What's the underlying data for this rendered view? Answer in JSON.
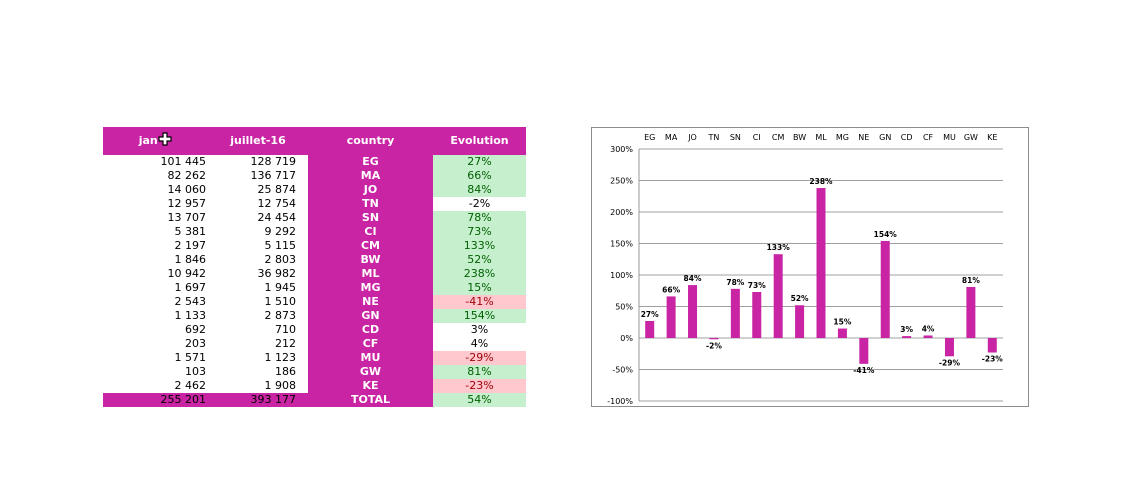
{
  "table": {
    "headers": [
      "jan-",
      "juillet-16",
      "country",
      "Evolution"
    ],
    "rows": [
      {
        "jan": "101 445",
        "jul": "128 719",
        "country": "EG",
        "evo": "27%",
        "kind": "pos"
      },
      {
        "jan": "82 262",
        "jul": "136 717",
        "country": "MA",
        "evo": "66%",
        "kind": "pos"
      },
      {
        "jan": "14 060",
        "jul": "25 874",
        "country": "JO",
        "evo": "84%",
        "kind": "pos"
      },
      {
        "jan": "12 957",
        "jul": "12 754",
        "country": "TN",
        "evo": "-2%",
        "kind": "neu"
      },
      {
        "jan": "13 707",
        "jul": "24 454",
        "country": "SN",
        "evo": "78%",
        "kind": "pos"
      },
      {
        "jan": "5 381",
        "jul": "9 292",
        "country": "CI",
        "evo": "73%",
        "kind": "pos"
      },
      {
        "jan": "2 197",
        "jul": "5 115",
        "country": "CM",
        "evo": "133%",
        "kind": "pos"
      },
      {
        "jan": "1 846",
        "jul": "2 803",
        "country": "BW",
        "evo": "52%",
        "kind": "pos"
      },
      {
        "jan": "10 942",
        "jul": "36 982",
        "country": "ML",
        "evo": "238%",
        "kind": "pos"
      },
      {
        "jan": "1 697",
        "jul": "1 945",
        "country": "MG",
        "evo": "15%",
        "kind": "pos"
      },
      {
        "jan": "2 543",
        "jul": "1 510",
        "country": "NE",
        "evo": "-41%",
        "kind": "neg"
      },
      {
        "jan": "1 133",
        "jul": "2 873",
        "country": "GN",
        "evo": "154%",
        "kind": "pos"
      },
      {
        "jan": "692",
        "jul": "710",
        "country": "CD",
        "evo": "3%",
        "kind": "neu"
      },
      {
        "jan": "203",
        "jul": "212",
        "country": "CF",
        "evo": "4%",
        "kind": "neu"
      },
      {
        "jan": "1 571",
        "jul": "1 123",
        "country": "MU",
        "evo": "-29%",
        "kind": "neg"
      },
      {
        "jan": "103",
        "jul": "186",
        "country": "GW",
        "evo": "81%",
        "kind": "pos"
      },
      {
        "jan": "2 462",
        "jul": "1 908",
        "country": "KE",
        "evo": "-23%",
        "kind": "neg"
      }
    ],
    "total": {
      "jan": "255 201",
      "jul": "393 177",
      "country": "TOTAL",
      "evo": "54%"
    }
  },
  "colors": {
    "bar": "#c924a4",
    "header": "#c924a4",
    "pos_fill": "#c6efce",
    "neg_fill": "#ffc7ce"
  },
  "chart_data": {
    "type": "bar",
    "categories": [
      "EG",
      "MA",
      "JO",
      "TN",
      "SN",
      "CI",
      "CM",
      "BW",
      "ML",
      "MG",
      "NE",
      "GN",
      "CD",
      "CF",
      "MU",
      "GW",
      "KE"
    ],
    "values": [
      27,
      66,
      84,
      -2,
      78,
      73,
      133,
      52,
      238,
      15,
      -41,
      154,
      3,
      4,
      -29,
      81,
      -23
    ],
    "value_labels": [
      "27%",
      "66%",
      "84%",
      "-2%",
      "78%",
      "73%",
      "133%",
      "52%",
      "238%",
      "15%",
      "-41%",
      "154%",
      "3%",
      "4%",
      "-29%",
      "81%",
      "-23%"
    ],
    "ylim": [
      -100,
      300
    ],
    "yticks": [
      -100,
      -50,
      0,
      50,
      100,
      150,
      200,
      250,
      300
    ],
    "ytick_labels": [
      "-100%",
      "-50%",
      "0%",
      "50%",
      "100%",
      "150%",
      "200%",
      "250%",
      "300%"
    ],
    "category_axis_position": "top",
    "grid": true,
    "title": "",
    "xlabel": "",
    "ylabel": ""
  }
}
